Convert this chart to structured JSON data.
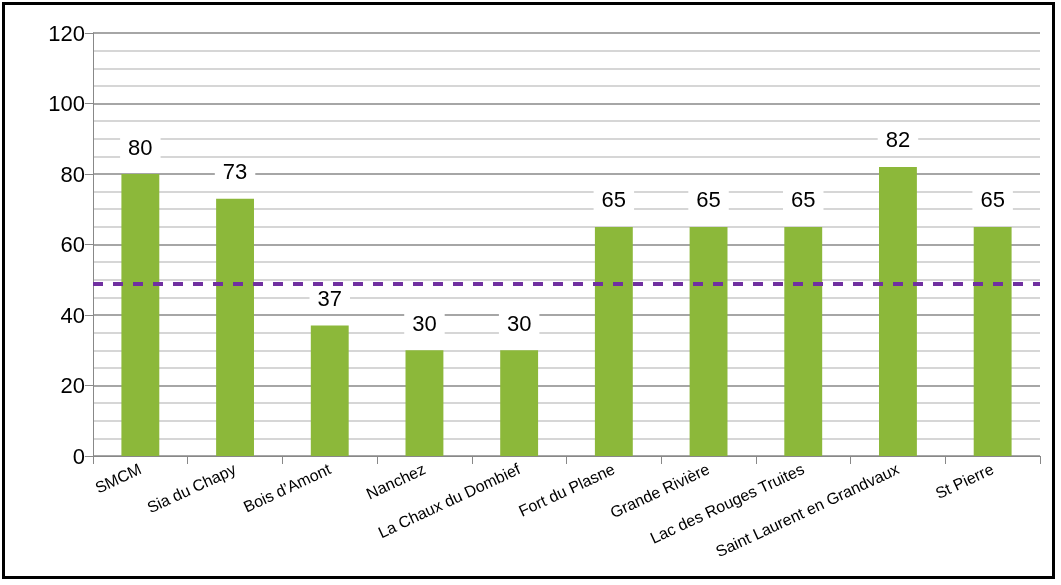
{
  "chart_data": {
    "type": "bar",
    "categories": [
      "SMCM",
      "Sia du Chapy",
      "Bois d’Amont",
      "Nanchez",
      "La Chaux du Dombief",
      "Fort du Plasne",
      "Grande Rivière",
      "Lac des Rouges Truites",
      "Saint Laurent en Grandvaux",
      "St Pierre"
    ],
    "values": [
      80,
      73,
      37,
      30,
      30,
      65,
      65,
      65,
      82,
      65
    ],
    "color": "#8cb83a",
    "ylim": [
      0,
      120
    ],
    "yticks": [
      0,
      20,
      40,
      60,
      80,
      100,
      120
    ],
    "grid": "y",
    "data_labels": true,
    "ref_lines": [
      {
        "axis": "y",
        "value": 49,
        "color": "#7030a0",
        "line_style": "dashed"
      }
    ]
  }
}
